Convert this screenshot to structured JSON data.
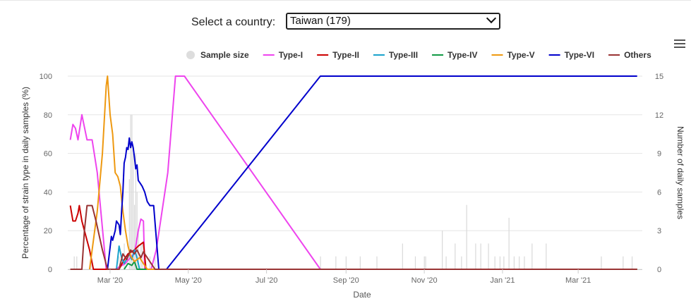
{
  "selector": {
    "label": "Select a country:",
    "value": "Taiwan (179)"
  },
  "chart_data": {
    "type": "line",
    "xlabel": "Date",
    "ylabel": "Percentage of strain type in daily samples (%)",
    "y2label": "Number of daily samples",
    "ylim": [
      0,
      100
    ],
    "y2lim": [
      0,
      15
    ],
    "xlim": [
      "2020-01-28",
      "2021-04-20"
    ],
    "x_ticks": [
      {
        "date": "2020-03-01",
        "label": "Mar '20"
      },
      {
        "date": "2020-05-01",
        "label": "May '20"
      },
      {
        "date": "2020-07-01",
        "label": "Jul '20"
      },
      {
        "date": "2020-09-01",
        "label": "Sep '20"
      },
      {
        "date": "2020-11-01",
        "label": "Nov '20"
      },
      {
        "date": "2021-01-01",
        "label": "Jan '21"
      },
      {
        "date": "2021-03-01",
        "label": "Mar '21"
      }
    ],
    "y_ticks": [
      0,
      20,
      40,
      60,
      80,
      100
    ],
    "y2_ticks": [
      0,
      3,
      6,
      9,
      12,
      15
    ],
    "grid": true,
    "legend_position": "top-right",
    "legend": [
      {
        "name": "Sample size",
        "color": "#dddddd",
        "marker": "circle"
      },
      {
        "name": "Type-I",
        "color": "#ee44ee"
      },
      {
        "name": "Type-II",
        "color": "#cc0000"
      },
      {
        "name": "Type-III",
        "color": "#1aa3cc"
      },
      {
        "name": "Type-IV",
        "color": "#119944"
      },
      {
        "name": "Type-V",
        "color": "#ee9911"
      },
      {
        "name": "Type-VI",
        "color": "#0000cc"
      },
      {
        "name": "Others",
        "color": "#993333"
      }
    ],
    "sample_size": [
      {
        "date": "2020-02-02",
        "value": 1
      },
      {
        "date": "2020-02-04",
        "value": 1
      },
      {
        "date": "2020-02-15",
        "value": 1
      },
      {
        "date": "2020-03-08",
        "value": 1
      },
      {
        "date": "2020-03-12",
        "value": 2
      },
      {
        "date": "2020-03-16",
        "value": 7
      },
      {
        "date": "2020-03-17",
        "value": 12
      },
      {
        "date": "2020-03-18",
        "value": 12
      },
      {
        "date": "2020-03-19",
        "value": 9
      },
      {
        "date": "2020-03-20",
        "value": 5
      },
      {
        "date": "2020-03-21",
        "value": 9
      },
      {
        "date": "2020-03-22",
        "value": 6
      },
      {
        "date": "2020-03-23",
        "value": 3
      },
      {
        "date": "2020-03-25",
        "value": 2
      },
      {
        "date": "2020-03-26",
        "value": 2
      },
      {
        "date": "2020-03-28",
        "value": 1
      },
      {
        "date": "2020-04-01",
        "value": 1
      },
      {
        "date": "2020-04-05",
        "value": 1
      },
      {
        "date": "2020-08-12",
        "value": 1
      },
      {
        "date": "2020-08-24",
        "value": 1
      },
      {
        "date": "2020-09-01",
        "value": 1
      },
      {
        "date": "2020-09-12",
        "value": 1
      },
      {
        "date": "2020-09-25",
        "value": 1
      },
      {
        "date": "2020-10-15",
        "value": 2
      },
      {
        "date": "2020-10-25",
        "value": 1
      },
      {
        "date": "2020-11-01",
        "value": 1
      },
      {
        "date": "2020-11-02",
        "value": 1
      },
      {
        "date": "2020-11-15",
        "value": 3
      },
      {
        "date": "2020-11-18",
        "value": 1
      },
      {
        "date": "2020-11-25",
        "value": 2
      },
      {
        "date": "2020-11-30",
        "value": 1
      },
      {
        "date": "2020-12-04",
        "value": 5
      },
      {
        "date": "2020-12-11",
        "value": 2
      },
      {
        "date": "2020-12-15",
        "value": 2
      },
      {
        "date": "2020-12-21",
        "value": 2
      },
      {
        "date": "2020-12-26",
        "value": 1
      },
      {
        "date": "2020-12-30",
        "value": 1
      },
      {
        "date": "2021-01-02",
        "value": 1
      },
      {
        "date": "2021-01-06",
        "value": 4
      },
      {
        "date": "2021-01-10",
        "value": 1
      },
      {
        "date": "2021-01-14",
        "value": 1
      },
      {
        "date": "2021-01-18",
        "value": 1
      },
      {
        "date": "2021-01-24",
        "value": 2
      },
      {
        "date": "2021-02-04",
        "value": 2
      },
      {
        "date": "2021-03-19",
        "value": 1
      },
      {
        "date": "2021-04-05",
        "value": 1
      },
      {
        "date": "2021-04-12",
        "value": 1
      }
    ],
    "series": [
      {
        "name": "Type-I",
        "color": "#ee44ee",
        "points": [
          [
            "2020-01-30",
            67
          ],
          [
            "2020-02-01",
            75
          ],
          [
            "2020-02-03",
            73
          ],
          [
            "2020-02-05",
            67
          ],
          [
            "2020-02-08",
            80
          ],
          [
            "2020-02-12",
            67
          ],
          [
            "2020-02-16",
            67
          ],
          [
            "2020-02-20",
            50
          ],
          [
            "2020-02-27",
            0
          ],
          [
            "2020-03-05",
            0
          ],
          [
            "2020-03-13",
            3
          ],
          [
            "2020-03-18",
            7
          ],
          [
            "2020-03-20",
            8
          ],
          [
            "2020-03-23",
            20
          ],
          [
            "2020-03-25",
            26
          ],
          [
            "2020-03-27",
            25
          ],
          [
            "2020-03-28",
            0
          ],
          [
            "2020-04-02",
            0
          ],
          [
            "2020-04-06",
            10
          ],
          [
            "2020-04-15",
            50
          ],
          [
            "2020-04-21",
            100
          ],
          [
            "2020-04-28",
            100
          ],
          [
            "2020-08-12",
            0
          ],
          [
            "2021-04-16",
            0
          ]
        ]
      },
      {
        "name": "Type-II",
        "color": "#cc0000",
        "points": [
          [
            "2020-01-30",
            33
          ],
          [
            "2020-02-01",
            25
          ],
          [
            "2020-02-03",
            25
          ],
          [
            "2020-02-05",
            29
          ],
          [
            "2020-02-06",
            33
          ],
          [
            "2020-02-08",
            25
          ],
          [
            "2020-02-10",
            20
          ],
          [
            "2020-02-14",
            10
          ],
          [
            "2020-02-17",
            0
          ],
          [
            "2020-03-08",
            0
          ],
          [
            "2020-03-12",
            5
          ],
          [
            "2020-03-15",
            8
          ],
          [
            "2020-03-20",
            10
          ],
          [
            "2020-03-23",
            12
          ],
          [
            "2020-03-27",
            14
          ],
          [
            "2020-03-29",
            0
          ],
          [
            "2021-04-16",
            0
          ]
        ]
      },
      {
        "name": "Type-III",
        "color": "#1aa3cc",
        "points": [
          [
            "2020-03-06",
            0
          ],
          [
            "2020-03-08",
            12
          ],
          [
            "2020-03-10",
            6
          ],
          [
            "2020-03-12",
            3
          ],
          [
            "2020-03-16",
            8
          ],
          [
            "2020-03-18",
            5
          ],
          [
            "2020-03-20",
            10
          ],
          [
            "2020-03-22",
            6
          ],
          [
            "2020-03-24",
            0
          ],
          [
            "2021-04-16",
            0
          ]
        ]
      },
      {
        "name": "Type-IV",
        "color": "#119944",
        "points": [
          [
            "2020-03-12",
            0
          ],
          [
            "2020-03-15",
            3
          ],
          [
            "2020-03-18",
            2
          ],
          [
            "2020-03-20",
            4
          ],
          [
            "2020-03-22",
            0
          ],
          [
            "2021-04-16",
            0
          ]
        ]
      },
      {
        "name": "Type-V",
        "color": "#ee9911",
        "points": [
          [
            "2020-02-14",
            0
          ],
          [
            "2020-02-20",
            30
          ],
          [
            "2020-02-24",
            60
          ],
          [
            "2020-02-27",
            95
          ],
          [
            "2020-02-28",
            100
          ],
          [
            "2020-03-01",
            80
          ],
          [
            "2020-03-03",
            70
          ],
          [
            "2020-03-05",
            50
          ],
          [
            "2020-03-07",
            48
          ],
          [
            "2020-03-09",
            43
          ],
          [
            "2020-03-11",
            30
          ],
          [
            "2020-03-13",
            20
          ],
          [
            "2020-03-15",
            12
          ],
          [
            "2020-03-17",
            7
          ],
          [
            "2020-03-20",
            4
          ],
          [
            "2020-03-24",
            6
          ],
          [
            "2020-03-27",
            3
          ],
          [
            "2020-03-30",
            0
          ],
          [
            "2021-04-16",
            0
          ]
        ]
      },
      {
        "name": "Type-VI",
        "color": "#0000cc",
        "points": [
          [
            "2020-02-28",
            0
          ],
          [
            "2020-03-02",
            17
          ],
          [
            "2020-03-03",
            15
          ],
          [
            "2020-03-05",
            20
          ],
          [
            "2020-03-06",
            25
          ],
          [
            "2020-03-08",
            23
          ],
          [
            "2020-03-09",
            18
          ],
          [
            "2020-03-10",
            30
          ],
          [
            "2020-03-11",
            40
          ],
          [
            "2020-03-12",
            55
          ],
          [
            "2020-03-13",
            58
          ],
          [
            "2020-03-14",
            63
          ],
          [
            "2020-03-15",
            62
          ],
          [
            "2020-03-16",
            68
          ],
          [
            "2020-03-17",
            63
          ],
          [
            "2020-03-18",
            66
          ],
          [
            "2020-03-19",
            63
          ],
          [
            "2020-03-20",
            58
          ],
          [
            "2020-03-21",
            52
          ],
          [
            "2020-03-22",
            54
          ],
          [
            "2020-03-23",
            46
          ],
          [
            "2020-03-24",
            45
          ],
          [
            "2020-03-26",
            43
          ],
          [
            "2020-03-28",
            40
          ],
          [
            "2020-03-30",
            35
          ],
          [
            "2020-04-01",
            33
          ],
          [
            "2020-04-04",
            33
          ],
          [
            "2020-04-08",
            0
          ],
          [
            "2020-04-14",
            0
          ],
          [
            "2020-08-12",
            100
          ],
          [
            "2021-04-16",
            100
          ]
        ]
      },
      {
        "name": "Others",
        "color": "#993333",
        "points": [
          [
            "2020-01-30",
            0
          ],
          [
            "2020-02-08",
            0
          ],
          [
            "2020-02-10",
            20
          ],
          [
            "2020-02-12",
            33
          ],
          [
            "2020-02-16",
            33
          ],
          [
            "2020-02-19",
            25
          ],
          [
            "2020-02-24",
            10
          ],
          [
            "2020-02-28",
            0
          ],
          [
            "2020-03-08",
            0
          ],
          [
            "2020-03-11",
            8
          ],
          [
            "2020-03-14",
            5
          ],
          [
            "2020-03-17",
            10
          ],
          [
            "2020-03-20",
            8
          ],
          [
            "2020-03-22",
            10
          ],
          [
            "2020-03-25",
            6
          ],
          [
            "2020-03-27",
            9
          ],
          [
            "2020-03-29",
            7
          ],
          [
            "2020-04-05",
            0
          ],
          [
            "2021-04-16",
            0
          ]
        ]
      }
    ]
  }
}
